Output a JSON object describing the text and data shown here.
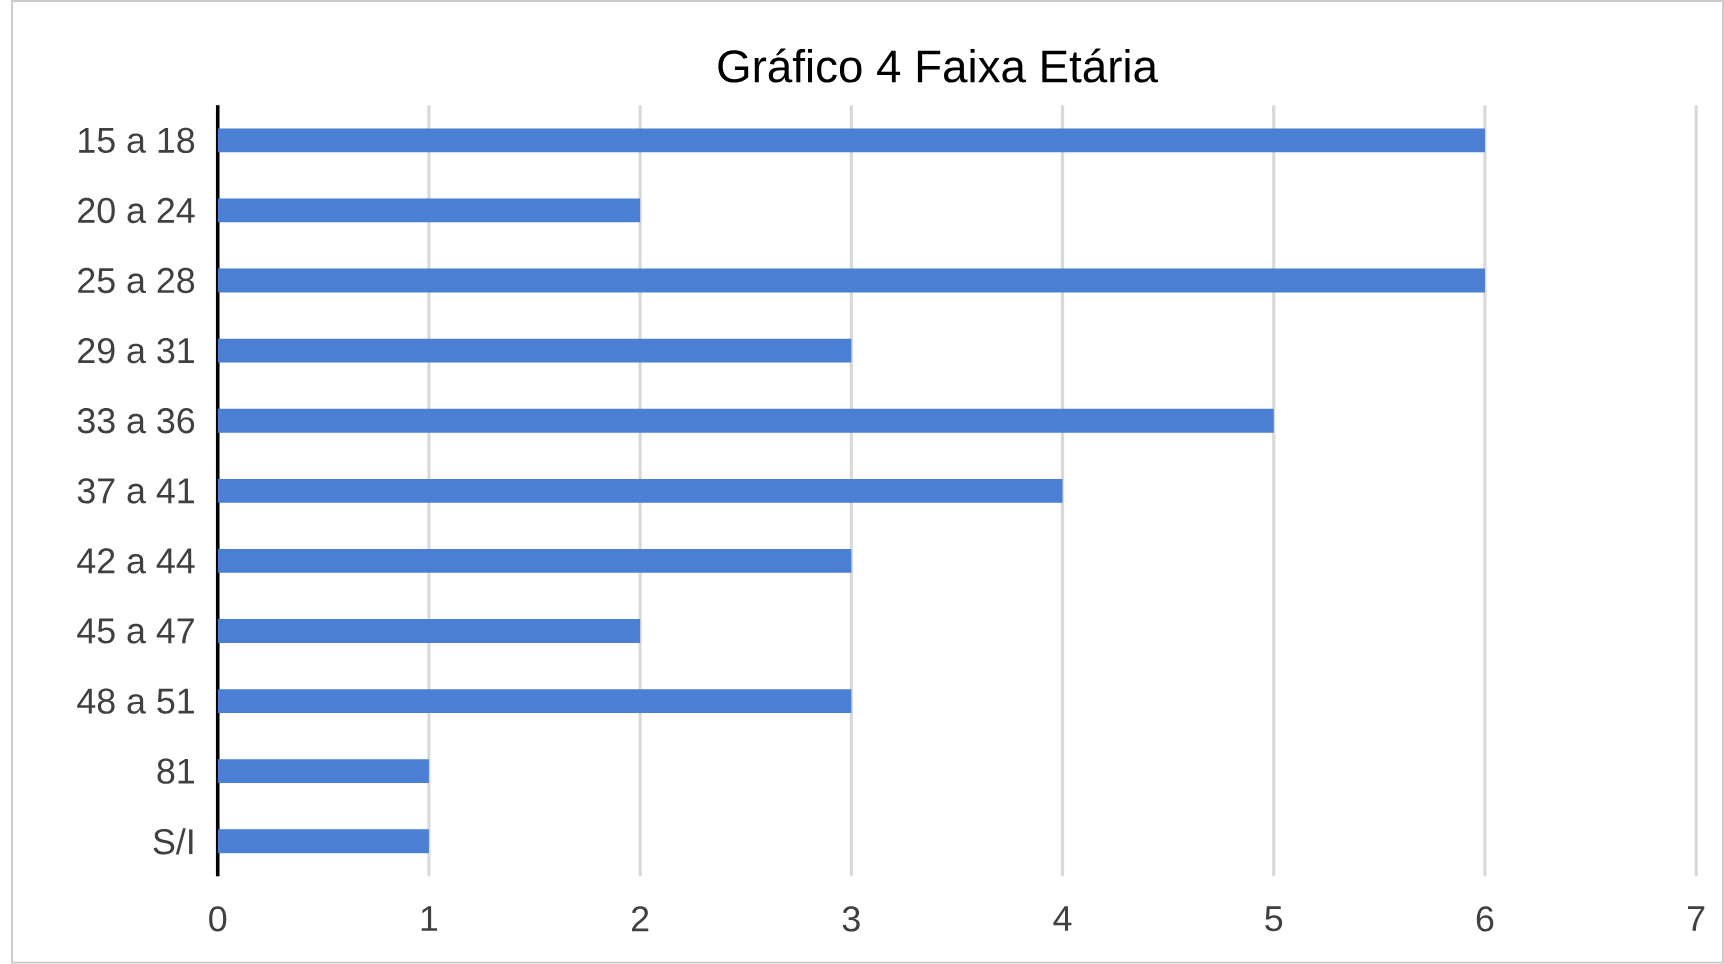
{
  "chart_data": {
    "type": "bar",
    "orientation": "horizontal",
    "title": "Gráfico 4 Faixa Etária",
    "categories": [
      "15 a 18",
      "20 a 24",
      "25 a 28",
      "29 a 31",
      "33 a 36",
      "37 a 41",
      "42 a 44",
      "45 a 47",
      "48 a 51",
      "81",
      "S/I"
    ],
    "values": [
      6,
      2,
      6,
      3,
      5,
      4,
      3,
      2,
      3,
      1,
      1
    ],
    "color": "#4a7fd4",
    "xlim": [
      0,
      7
    ],
    "xticks": [
      0,
      1,
      2,
      3,
      4,
      5,
      6,
      7
    ],
    "grid": "x"
  }
}
